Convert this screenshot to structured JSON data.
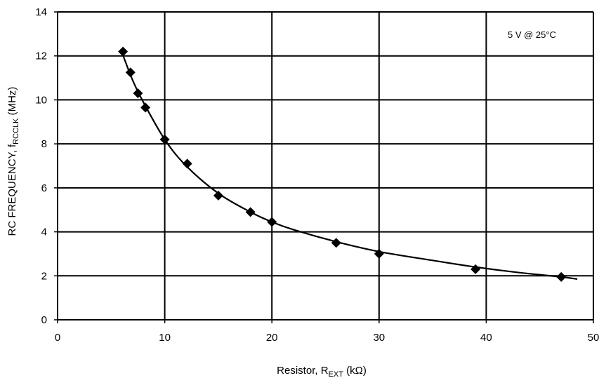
{
  "chart_data": {
    "type": "scatter",
    "title": "",
    "xlabel": {
      "main": "Resistor, R",
      "sub": "EXT",
      "unit": " (kΩ)"
    },
    "ylabel": {
      "main": "RC FREQUENCY, f",
      "sub": "RCCLK",
      "unit": " (MHz)"
    },
    "xlim": [
      0,
      50
    ],
    "ylim": [
      0,
      14
    ],
    "xticks": [
      "0",
      "10",
      "20",
      "30",
      "40",
      "50"
    ],
    "yticks": [
      "0",
      "2",
      "4",
      "6",
      "8",
      "10",
      "12",
      "14"
    ],
    "grid": true,
    "annotation": "5 V @ 25°C",
    "series": [
      {
        "points": [
          [
            6.1,
            12.2
          ],
          [
            6.8,
            11.25
          ],
          [
            7.5,
            10.3
          ],
          [
            8.2,
            9.65
          ],
          [
            10.0,
            8.2
          ],
          [
            12.1,
            7.1
          ],
          [
            15.0,
            5.65
          ],
          [
            18.0,
            4.9
          ],
          [
            20.0,
            4.45
          ],
          [
            26.0,
            3.5
          ],
          [
            30.0,
            3.0
          ],
          [
            39.0,
            2.3
          ],
          [
            47.0,
            1.95
          ]
        ],
        "fit_curve": [
          [
            5.9,
            12.3
          ],
          [
            7.0,
            10.9
          ],
          [
            8.0,
            9.9
          ],
          [
            10.0,
            8.2
          ],
          [
            12.0,
            7.0
          ],
          [
            15.0,
            5.75
          ],
          [
            18.0,
            4.9
          ],
          [
            20.0,
            4.45
          ],
          [
            22.0,
            4.1
          ],
          [
            26.0,
            3.55
          ],
          [
            30.0,
            3.1
          ],
          [
            35.0,
            2.7
          ],
          [
            39.0,
            2.4
          ],
          [
            43.0,
            2.15
          ],
          [
            47.0,
            1.95
          ],
          [
            48.5,
            1.85
          ]
        ]
      }
    ]
  }
}
